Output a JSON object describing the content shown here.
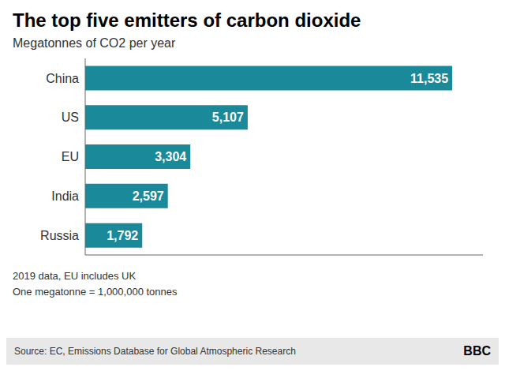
{
  "chart_data": {
    "type": "bar",
    "orientation": "horizontal",
    "title": "The top five emitters of carbon dioxide",
    "subtitle": "Megatonnes of CO2 per year",
    "categories": [
      "China",
      "US",
      "EU",
      "India",
      "Russia"
    ],
    "values": [
      11535,
      5107,
      3304,
      2597,
      1792
    ],
    "value_labels": [
      "11,535",
      "5,107",
      "3,304",
      "2,597",
      "1,792"
    ],
    "data_labels": true,
    "color": "#1a8a9a",
    "xlim": [
      0,
      12500
    ],
    "grid": false,
    "tick_labels": "y",
    "annotations": [
      "2019 data, EU includes UK",
      "One megatonne = 1,000,000 tonnes",
      "Source: EC, Emissions Database for Global Atmospheric Research",
      "BBC"
    ]
  }
}
